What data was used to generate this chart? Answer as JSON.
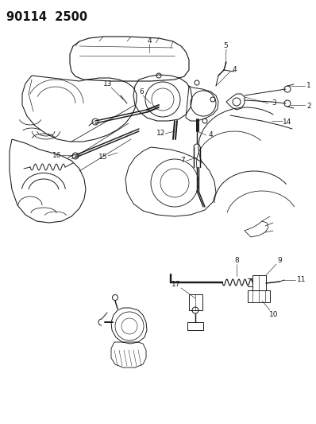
{
  "title": "90114  2500",
  "bg_color": "#ffffff",
  "fig_width": 3.98,
  "fig_height": 5.33,
  "dpi": 100,
  "lc": "#1a1a1a",
  "lw": 0.7,
  "label_fontsize": 6.5,
  "title_fontsize": 10.5,
  "title_fontweight": "bold"
}
